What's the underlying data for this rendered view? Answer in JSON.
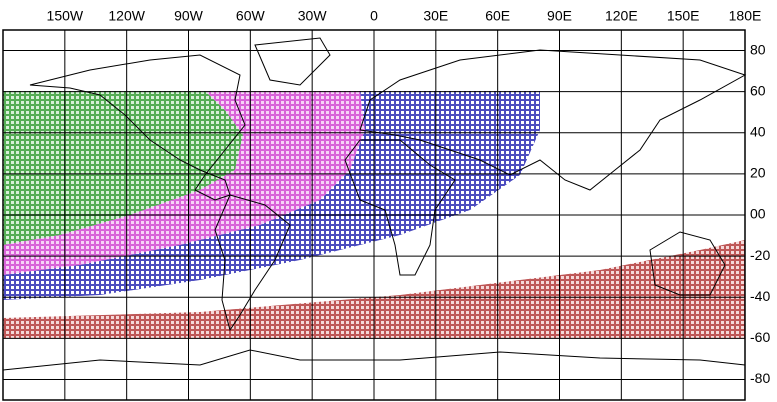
{
  "lon_labels": [
    "150W",
    "120W",
    "90W",
    "60W",
    "30W",
    "0",
    "30E",
    "60E",
    "90E",
    "120E",
    "150E",
    "180E"
  ],
  "lat_labels": [
    "80",
    "60",
    "40",
    "20",
    "00",
    "-20",
    "-40",
    "-60",
    "-80"
  ]
}
